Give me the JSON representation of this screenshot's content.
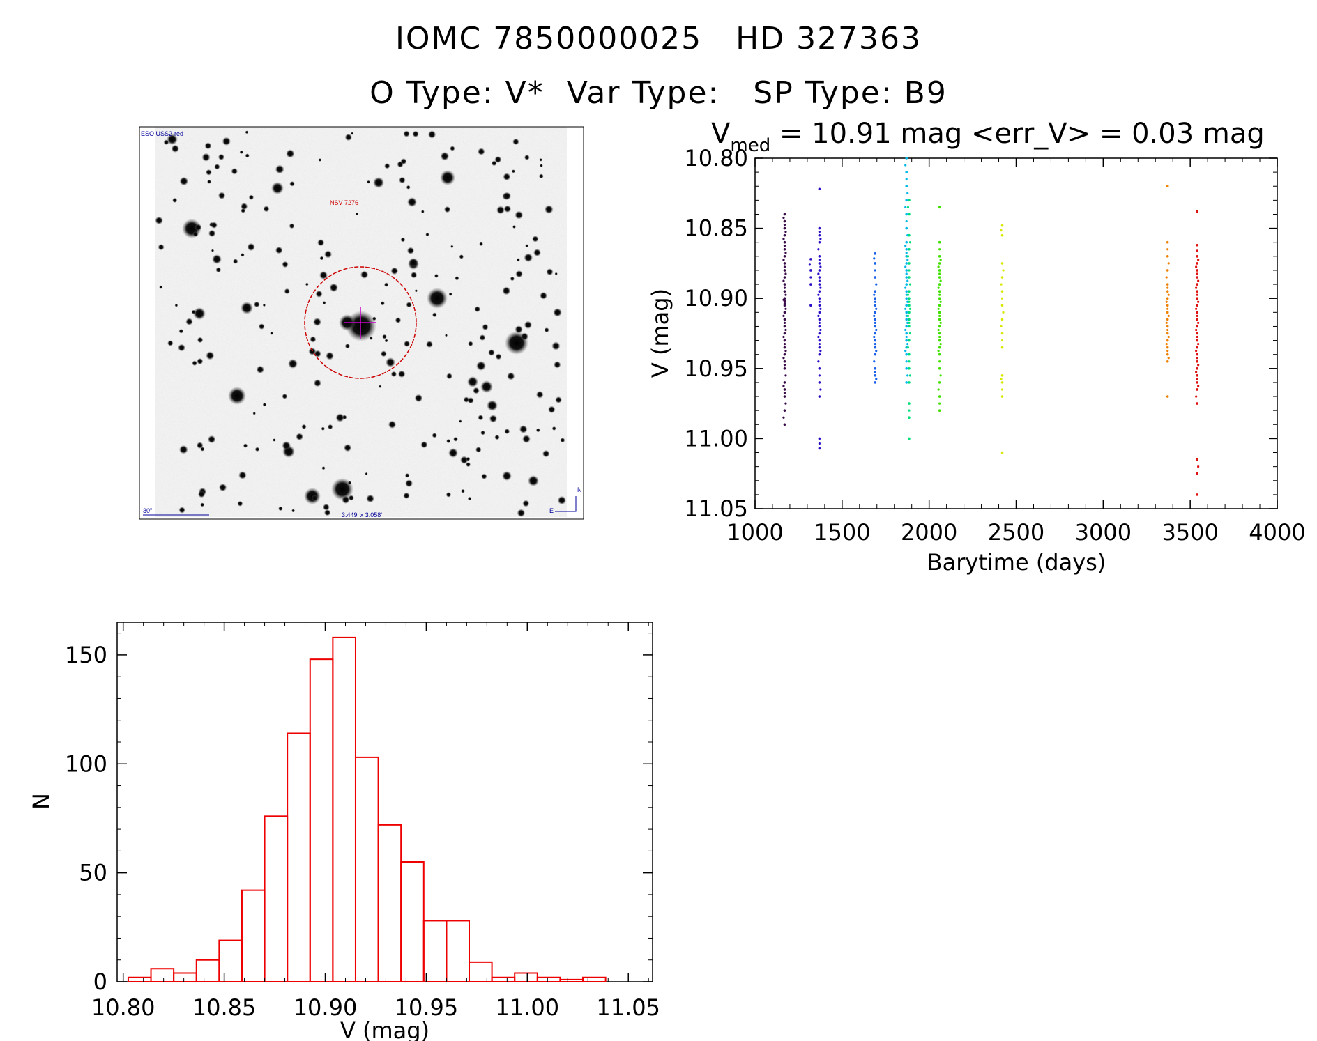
{
  "header": {
    "line1": "IOMC 7850000025   HD 327363",
    "line2": "O Type: V*  Var Type:   SP Type: B9"
  },
  "finder": {
    "survey_label": "ESO USS2-red",
    "target_label": "NSV 7276",
    "scale_label": "30\"",
    "fov_label": "3.449' x 3.058'",
    "north_label": "N",
    "east_label": "E",
    "colors": {
      "circle": "#cc0000",
      "cross": "#cc00cc",
      "text_blue": "#000099",
      "text_red": "#cc0000"
    }
  },
  "chart_data": [
    {
      "type": "scatter",
      "title_prefix": "V",
      "title_sub": "med",
      "title_rest": " = 10.91 mag <err_V> = 0.03 mag",
      "xlabel": "Barytime (days)",
      "ylabel": "V (mag)",
      "xlim": [
        1000,
        4000
      ],
      "ylim": [
        10.8,
        11.05
      ],
      "y_inverted": true,
      "xticks": [
        "1000",
        "1500",
        "2000",
        "2500",
        "3000",
        "3500",
        "4000"
      ],
      "yticks": [
        "10.80",
        "10.85",
        "10.90",
        "10.95",
        "11.00",
        "11.05"
      ],
      "series": [
        {
          "name": "season1",
          "color": "#3a0a4a",
          "x": 1170,
          "points": [
            10.84,
            10.845,
            10.85,
            10.855,
            10.86,
            10.865,
            10.87,
            10.875,
            10.88,
            10.885,
            10.89,
            10.895,
            10.9,
            10.902,
            10.905,
            10.91,
            10.915,
            10.92,
            10.925,
            10.93,
            10.935,
            10.94,
            10.945,
            10.95,
            10.96,
            10.965,
            10.97,
            10.98,
            10.99
          ]
        },
        {
          "name": "season2",
          "color": "#2a10c8",
          "x": 1370,
          "points": [
            10.822,
            10.85,
            10.855,
            10.86,
            10.87,
            10.875,
            10.88,
            10.885,
            10.89,
            10.895,
            10.9,
            10.905,
            10.91,
            10.915,
            10.92,
            10.925,
            10.93,
            10.935,
            10.94,
            10.95,
            10.96,
            10.97,
            11.0,
            11.007
          ]
        },
        {
          "name": "season2b",
          "color": "#2a10c8",
          "x": 1320,
          "points": [
            10.872,
            10.88,
            10.89,
            10.905
          ]
        },
        {
          "name": "season3",
          "color": "#1860e8",
          "x": 1690,
          "points": [
            10.868,
            10.875,
            10.885,
            10.895,
            10.9,
            10.905,
            10.91,
            10.915,
            10.92,
            10.925,
            10.93,
            10.935,
            10.94,
            10.95,
            10.955,
            10.96
          ]
        },
        {
          "name": "season4",
          "color": "#00b8e8",
          "x": 1870,
          "points": [
            10.8,
            10.81,
            10.82,
            10.83,
            10.84,
            10.85,
            10.86,
            10.865,
            10.87,
            10.875,
            10.88,
            10.885,
            10.89,
            10.895,
            10.9,
            10.905,
            10.91,
            10.915,
            10.92,
            10.925,
            10.93,
            10.935,
            10.94,
            10.95,
            10.96
          ]
        },
        {
          "name": "season4b",
          "color": "#00e078",
          "x": 1885,
          "points": [
            10.83,
            10.84,
            10.855,
            10.865,
            10.875,
            10.885,
            10.895,
            10.9,
            10.905,
            10.91,
            10.915,
            10.92,
            10.93,
            10.94,
            10.95,
            10.96,
            10.975,
            10.985,
            11.0
          ]
        },
        {
          "name": "season5",
          "color": "#40e000",
          "x": 2060,
          "points": [
            10.835,
            10.86,
            10.87,
            10.875,
            10.88,
            10.885,
            10.89,
            10.895,
            10.9,
            10.905,
            10.91,
            10.915,
            10.92,
            10.925,
            10.93,
            10.935,
            10.94,
            10.95,
            10.96,
            10.97,
            10.98
          ]
        },
        {
          "name": "season6",
          "color": "#d8e800",
          "x": 2420,
          "points": [
            10.848,
            10.855,
            10.875,
            10.885,
            10.895,
            10.905,
            10.915,
            10.925,
            10.935,
            10.955,
            10.96,
            10.97,
            11.01
          ]
        },
        {
          "name": "season7",
          "color": "#f08000",
          "x": 3370,
          "points": [
            10.82,
            10.86,
            10.87,
            10.88,
            10.89,
            10.895,
            10.9,
            10.905,
            10.91,
            10.915,
            10.92,
            10.925,
            10.93,
            10.935,
            10.94,
            10.945,
            10.97
          ]
        },
        {
          "name": "season8",
          "color": "#e01010",
          "x": 3540,
          "points": [
            10.838,
            10.862,
            10.87,
            10.875,
            10.88,
            10.885,
            10.89,
            10.895,
            10.9,
            10.905,
            10.91,
            10.915,
            10.92,
            10.925,
            10.93,
            10.935,
            10.94,
            10.945,
            10.95,
            10.955,
            10.96,
            10.965,
            10.975,
            11.015,
            11.025,
            11.04
          ]
        }
      ]
    },
    {
      "type": "bar",
      "subtype": "histogram",
      "xlabel": "V (mag)",
      "ylabel": "N",
      "xlim": [
        10.797,
        11.062
      ],
      "ylim": [
        0,
        165
      ],
      "xticks": [
        "10.80",
        "10.85",
        "10.90",
        "10.95",
        "11.00",
        "11.05"
      ],
      "yticks": [
        "0",
        "50",
        "100",
        "150"
      ],
      "bin_start": 10.8025,
      "bin_width": 0.01125,
      "values": [
        2,
        6,
        4,
        10,
        19,
        42,
        76,
        114,
        148,
        158,
        103,
        72,
        55,
        28,
        28,
        9,
        2,
        4,
        2,
        1,
        2
      ],
      "color": "#ee0000"
    }
  ]
}
